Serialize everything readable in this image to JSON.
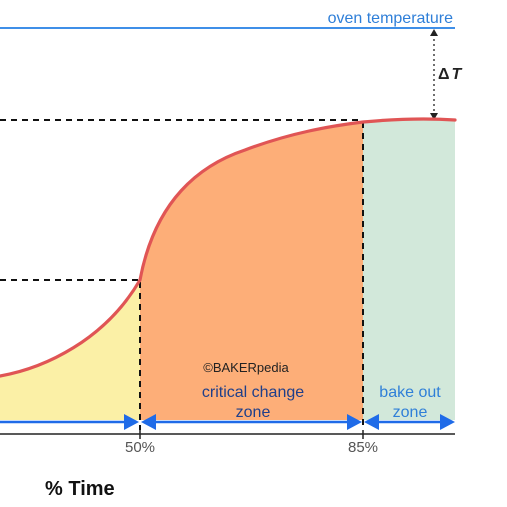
{
  "labels": {
    "oven_temperature": "oven temperature",
    "delta_t_symbol": "Δ",
    "delta_t_var": "T",
    "tick_50": "50%",
    "tick_85": "85%",
    "copyright": "©BAKERpedia",
    "zone_critical_line1": "critical change",
    "zone_critical_line2": "zone",
    "zone_bake_line1": "bake out",
    "zone_bake_line2": "zone",
    "axis_title": "% Time"
  },
  "colors": {
    "oven_line": "#3f8fe8",
    "curve": "#e05555",
    "zone_yellow": "#fbf0a6",
    "zone_orange": "#fdae78",
    "zone_green": "#d2e8da",
    "arrow_blue": "#1f6be8",
    "axis": "#222222"
  }
}
